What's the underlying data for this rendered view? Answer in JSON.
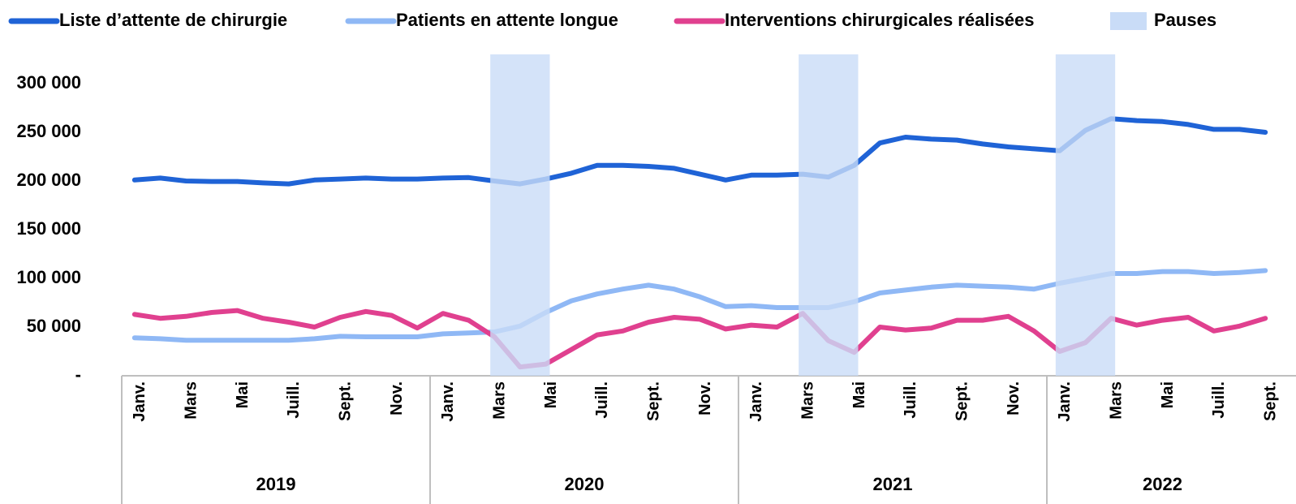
{
  "chart_data": {
    "type": "line",
    "categories": [
      "Janv.",
      null,
      "Mars",
      null,
      "Mai",
      null,
      "Juill.",
      null,
      "Sept.",
      null,
      "Nov.",
      null,
      "Janv.",
      null,
      "Mars",
      null,
      "Mai",
      null,
      "Juill.",
      null,
      "Sept.",
      null,
      "Nov.",
      null,
      "Janv.",
      null,
      "Mars",
      null,
      "Mai",
      null,
      "Juill.",
      null,
      "Sept.",
      null,
      "Nov.",
      null,
      "Janv.",
      null,
      "Mars",
      null,
      "Mai",
      null,
      "Juill.",
      null,
      "Sept."
    ],
    "groups": [
      {
        "label": "2019",
        "span": 12
      },
      {
        "label": "2020",
        "span": 12
      },
      {
        "label": "2021",
        "span": 12
      },
      {
        "label": "2022",
        "span": 9
      }
    ],
    "series": [
      {
        "name": "Liste d’attente de chirurgie",
        "color": "#1f63d6",
        "values": [
          201000,
          203000,
          200000,
          199500,
          199500,
          198000,
          197000,
          201000,
          202000,
          203000,
          202000,
          202000,
          203000,
          203500,
          200000,
          197000,
          202000,
          208000,
          216000,
          216000,
          215000,
          213000,
          207000,
          201000,
          206000,
          206000,
          207000,
          204000,
          216000,
          239000,
          245000,
          243000,
          242000,
          238000,
          235000,
          233000,
          231000,
          252000,
          264000,
          262000,
          261000,
          258000,
          253000,
          253000,
          250000
        ]
      },
      {
        "name": "Patients en attente longue",
        "color": "#8fb8f5",
        "values": [
          39000,
          38000,
          36500,
          36500,
          36500,
          36500,
          36500,
          38000,
          40500,
          40000,
          40000,
          40000,
          43000,
          44000,
          45000,
          51000,
          65000,
          77000,
          84000,
          89000,
          93000,
          89000,
          81000,
          71000,
          72000,
          70000,
          70000,
          70000,
          76000,
          85000,
          88000,
          91000,
          93000,
          92000,
          91000,
          89000,
          95000,
          100000,
          105000,
          105000,
          107000,
          107000,
          105000,
          106000,
          108000
        ]
      },
      {
        "name": "Interventions chirurgicales réalisées",
        "color": "#e0408f",
        "values": [
          63000,
          59000,
          61000,
          65000,
          67000,
          59000,
          55000,
          50000,
          60000,
          66000,
          62000,
          49000,
          64000,
          57000,
          40000,
          9000,
          12000,
          27000,
          42000,
          46000,
          55000,
          60000,
          58000,
          48000,
          52000,
          50000,
          64000,
          36000,
          24000,
          50000,
          47000,
          49000,
          57000,
          57000,
          61000,
          46000,
          25000,
          34000,
          59000,
          52000,
          57000,
          60000,
          46000,
          51000,
          59000
        ]
      }
    ],
    "pauses": {
      "name": "Pauses",
      "color": "#c9dcf7",
      "ranges": [
        [
          14,
          16
        ],
        [
          26,
          28
        ],
        [
          36,
          38
        ]
      ]
    },
    "ylim": [
      0,
      330000
    ],
    "yticks": [
      {
        "value": 0,
        "label": "-"
      },
      {
        "value": 50000,
        "label": "50 000"
      },
      {
        "value": 100000,
        "label": "100 000"
      },
      {
        "value": 150000,
        "label": "150 000"
      },
      {
        "value": 200000,
        "label": "200 000"
      },
      {
        "value": 250000,
        "label": "250 000"
      },
      {
        "value": 300000,
        "label": "300 000"
      }
    ]
  }
}
